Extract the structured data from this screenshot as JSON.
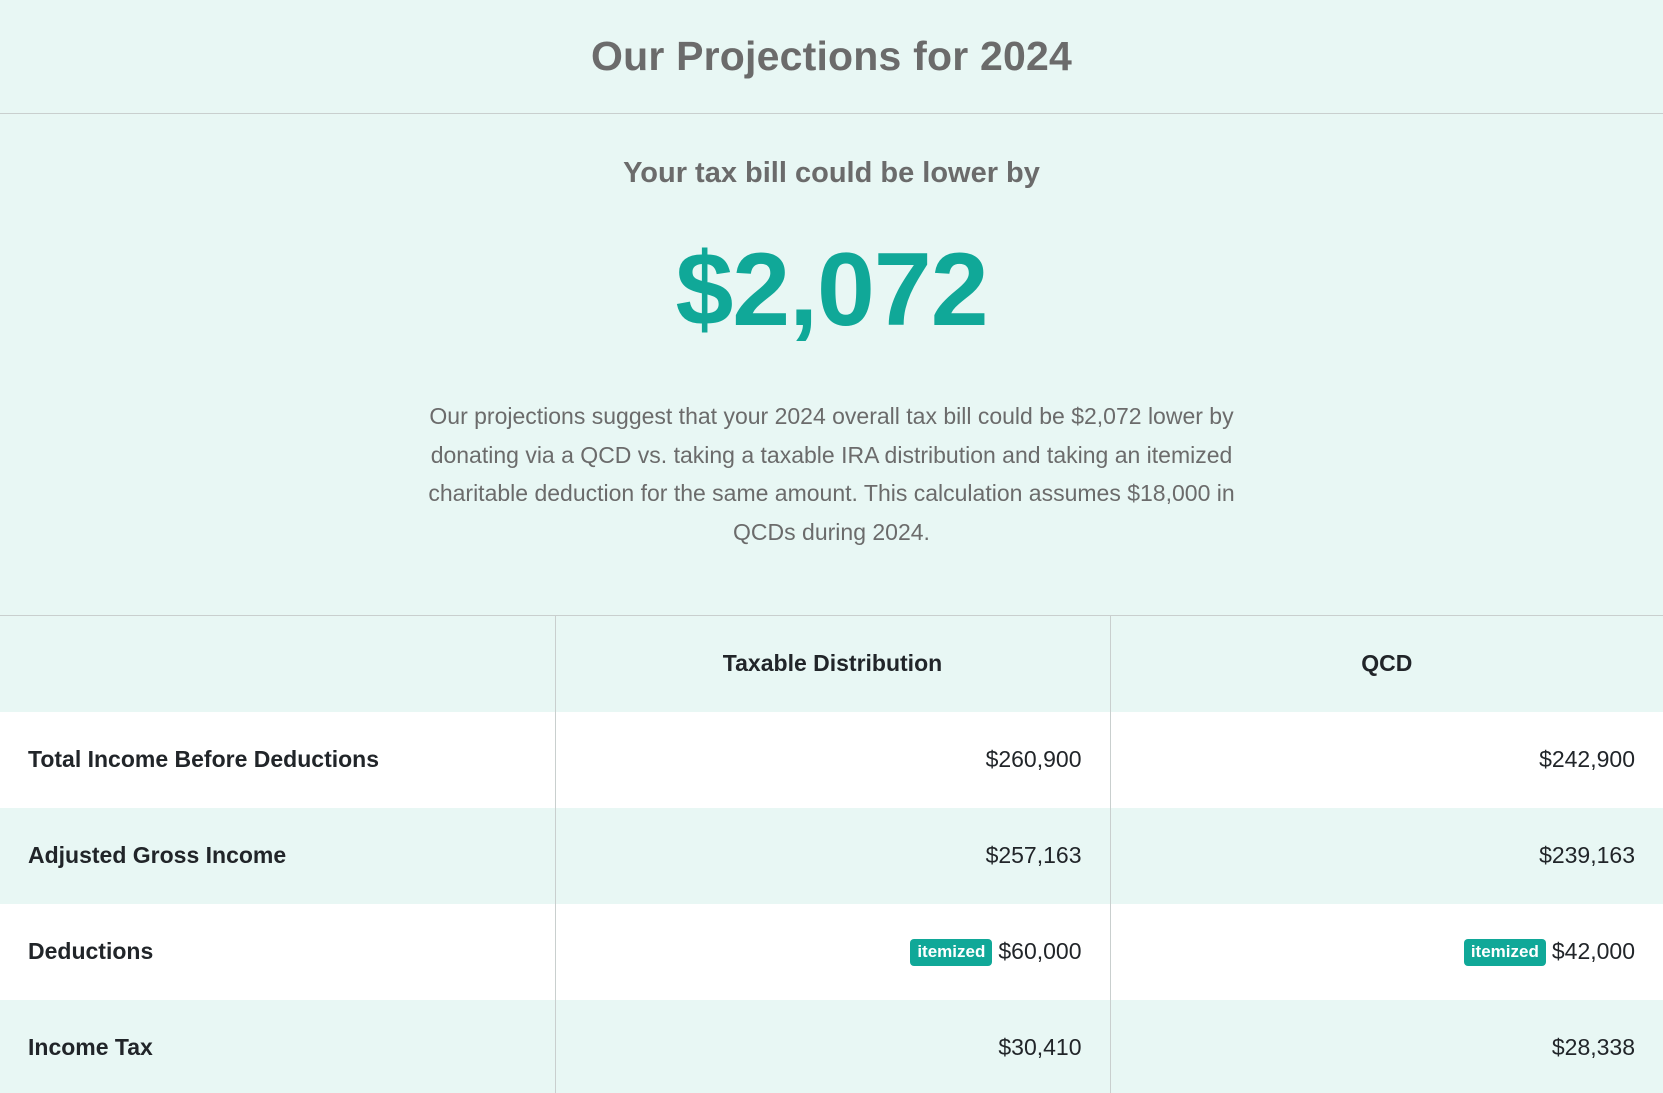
{
  "header": {
    "title": "Our Projections for 2024"
  },
  "summary": {
    "subtitle": "Your tax bill could be lower by",
    "amount": "$2,072",
    "description": "Our projections suggest that your 2024 overall tax bill could be $2,072 lower by donating via a QCD vs. taking a taxable IRA distribution and taking an itemized charitable deduction for the same amount. This calculation assumes $18,000 in QCDs during 2024."
  },
  "table": {
    "columns": [
      "",
      "Taxable Distribution",
      "QCD"
    ],
    "rows": [
      {
        "label": "Total Income Before Deductions",
        "taxable": "$260,900",
        "qcd": "$242,900"
      },
      {
        "label": "Adjusted Gross Income",
        "taxable": "$257,163",
        "qcd": "$239,163"
      },
      {
        "label": "Deductions",
        "taxable": "$60,000",
        "taxable_badge": "itemized",
        "qcd": "$42,000",
        "qcd_badge": "itemized"
      },
      {
        "label": "Income Tax",
        "taxable": "$30,410",
        "qcd": "$28,338"
      }
    ]
  },
  "colors": {
    "background": "#e8f7f4",
    "accent": "#10a898",
    "muted_text": "#6b6b6b",
    "row_white": "#ffffff",
    "border": "#c9cfce"
  }
}
